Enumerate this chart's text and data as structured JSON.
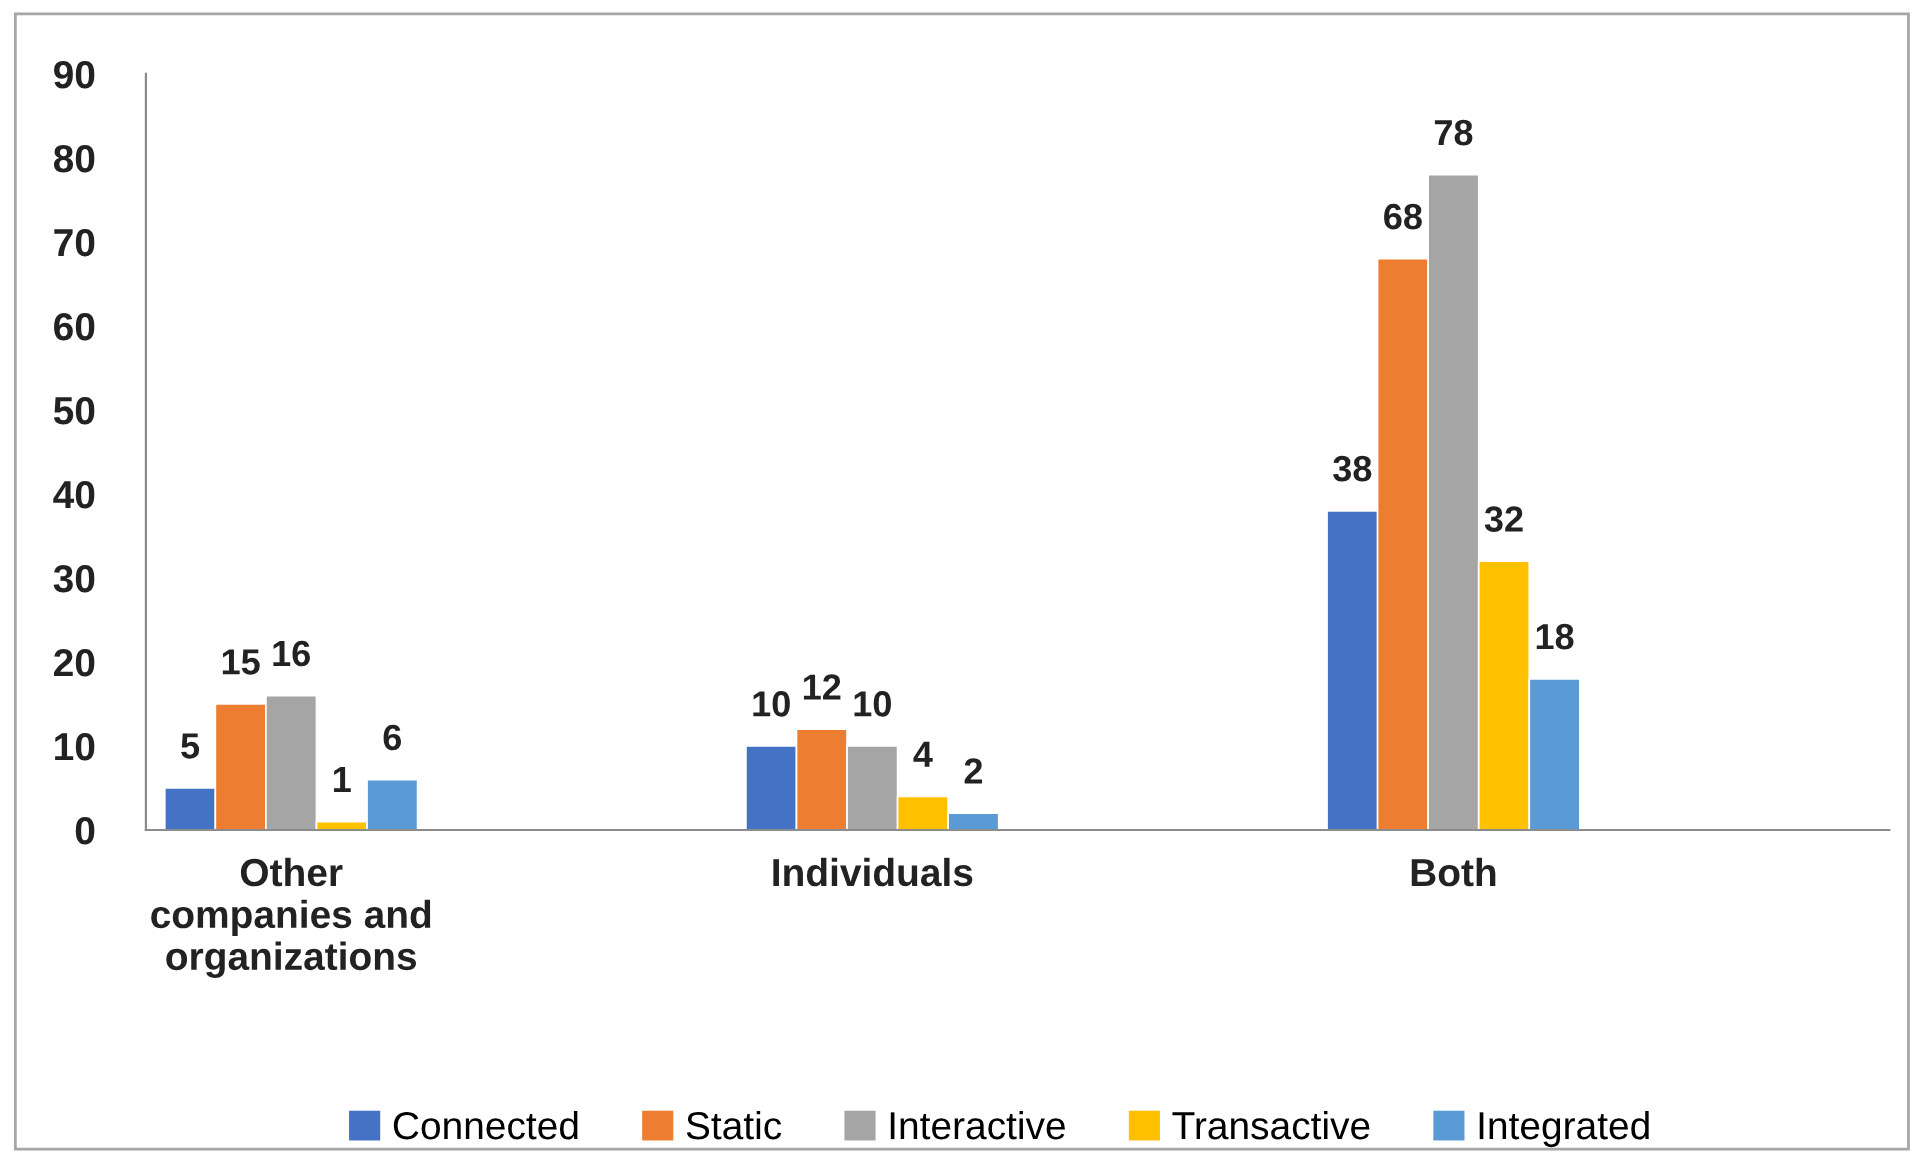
{
  "chart_data": {
    "type": "bar",
    "categories": [
      "Other\ncompanies and\norganizations",
      "Individuals",
      "Both"
    ],
    "series": [
      {
        "name": "Connected",
        "color": "#4472c4",
        "values": [
          5,
          10,
          38
        ]
      },
      {
        "name": "Static",
        "color": "#ed7d31",
        "values": [
          15,
          12,
          68
        ]
      },
      {
        "name": "Interactive",
        "color": "#a5a5a5",
        "values": [
          16,
          10,
          78
        ]
      },
      {
        "name": "Transactive",
        "color": "#ffc000",
        "values": [
          1,
          4,
          32
        ]
      },
      {
        "name": "Integrated",
        "color": "#5b9bd5",
        "values": [
          6,
          2,
          18
        ]
      }
    ],
    "ylim": [
      0,
      90
    ],
    "yticks": [
      0,
      10,
      20,
      30,
      40,
      50,
      60,
      70,
      80,
      90
    ],
    "data_labels": true,
    "grid": false,
    "legend": "bottom"
  }
}
